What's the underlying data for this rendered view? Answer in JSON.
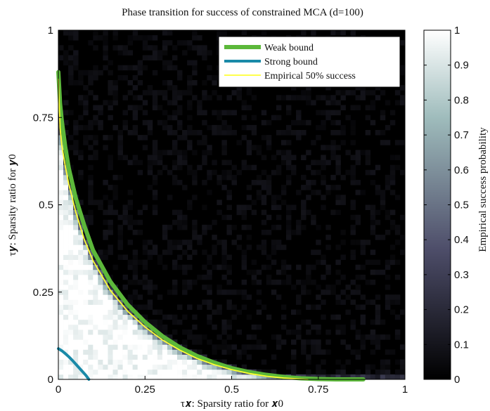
{
  "chart_data": {
    "type": "heatmap",
    "title": "Phase transition for success of constrained MCA (d=100)",
    "xlabel": "τ𝒙: Sparsity ratio for 𝒙0",
    "ylabel": "τ𝒚: Sparsity ratio for 𝒚0",
    "xlim": [
      0,
      1
    ],
    "ylim": [
      0,
      1
    ],
    "x_ticks": [
      "0",
      "0.25",
      "0.5",
      "0.75",
      "1"
    ],
    "y_ticks": [
      "0",
      "0.25",
      "0.5",
      "0.75",
      "1"
    ],
    "colorbar": {
      "label": "Empirical success probability",
      "range": [
        0,
        1
      ],
      "ticks": [
        "0",
        "0.1",
        "0.2",
        "0.3",
        "0.4",
        "0.5",
        "0.6",
        "0.7",
        "0.8",
        "0.9",
        "1"
      ],
      "colormap": "bone (black = 0, white = 1)"
    },
    "grid_resolution": 70,
    "legend_position": "top-right",
    "series": [
      {
        "name": "Weak bound",
        "color": "#5cb83a",
        "x": [
          0.0,
          0.005,
          0.01,
          0.02,
          0.03,
          0.05,
          0.075,
          0.1,
          0.15,
          0.2,
          0.25,
          0.3,
          0.35,
          0.4,
          0.45,
          0.5,
          0.55,
          0.6,
          0.65,
          0.7,
          0.75,
          0.8,
          0.85,
          0.88
        ],
        "y": [
          0.88,
          0.79,
          0.74,
          0.665,
          0.605,
          0.52,
          0.44,
          0.37,
          0.28,
          0.214,
          0.164,
          0.124,
          0.092,
          0.067,
          0.048,
          0.032,
          0.021,
          0.013,
          0.007,
          0.003,
          0.001,
          0.0,
          0.0,
          0.0
        ]
      },
      {
        "name": "Strong bound",
        "color": "#1a8aa8",
        "x": [
          0.0,
          0.005,
          0.01,
          0.02,
          0.03,
          0.04,
          0.05,
          0.06,
          0.07,
          0.08,
          0.088
        ],
        "y": [
          0.088,
          0.085,
          0.082,
          0.074,
          0.065,
          0.055,
          0.044,
          0.033,
          0.022,
          0.011,
          0.0
        ]
      },
      {
        "name": "Empirical 50% success",
        "color": "#ffff33",
        "x": [
          0.0,
          0.005,
          0.01,
          0.02,
          0.03,
          0.05,
          0.075,
          0.1,
          0.15,
          0.2,
          0.25,
          0.3,
          0.35,
          0.4,
          0.45,
          0.5,
          0.55,
          0.6,
          0.65,
          0.7,
          0.72
        ],
        "y": [
          0.86,
          0.72,
          0.67,
          0.61,
          0.56,
          0.48,
          0.4,
          0.34,
          0.255,
          0.195,
          0.15,
          0.113,
          0.084,
          0.06,
          0.042,
          0.028,
          0.017,
          0.009,
          0.004,
          0.001,
          0.0
        ]
      }
    ]
  }
}
